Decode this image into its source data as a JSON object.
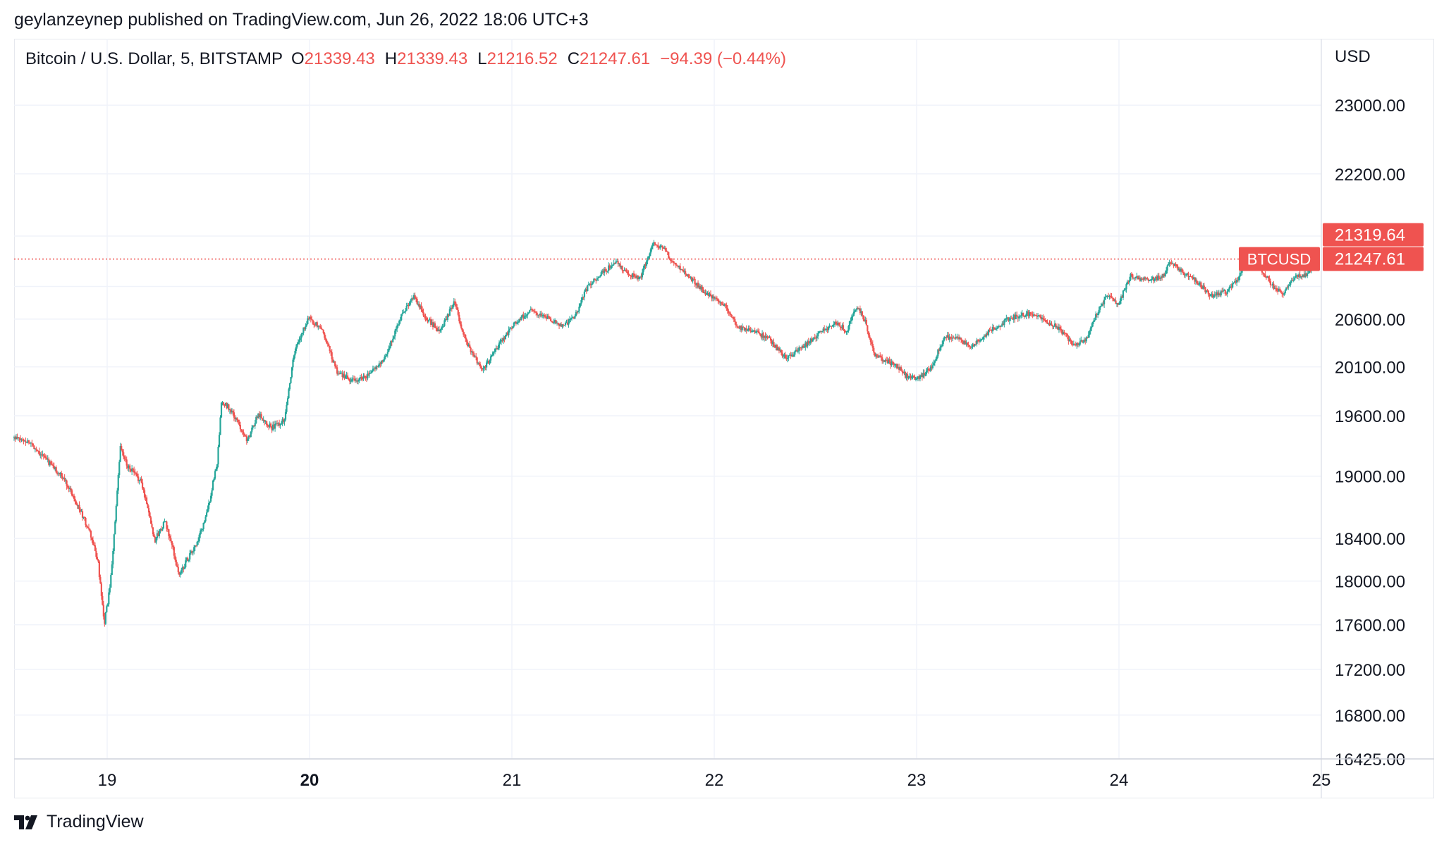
{
  "header": {
    "published_by": "geylanzeynep published on TradingView.com, Jun 26, 2022 18:06 UTC+3"
  },
  "legend": {
    "symbol": "Bitcoin / U.S. Dollar, 5, BITSTAMP",
    "open_label": "O",
    "open_value": "21339.43",
    "high_label": "H",
    "high_value": "21339.43",
    "low_label": "L",
    "low_value": "21216.52",
    "close_label": "C",
    "close_value": "21247.61",
    "change": "−94.39 (−0.44%)"
  },
  "footer": {
    "brand": "TradingView"
  },
  "colors": {
    "up": "#26a69a",
    "down": "#ef5350",
    "grid": "#f0f3fa",
    "label_bg": "#ef5350",
    "text": "#131722"
  },
  "chart_data": {
    "type": "candlestick",
    "title": "Bitcoin / U.S. Dollar, 5, BITSTAMP",
    "currency_label": "USD",
    "y_scale": "log",
    "ylim": [
      16425,
      23800
    ],
    "y_ticks": [
      {
        "value": 23000,
        "label": "23000.00"
      },
      {
        "value": 22200,
        "label": "22200.00"
      },
      {
        "value": 20600,
        "label": "20600.00"
      },
      {
        "value": 20100,
        "label": "20100.00"
      },
      {
        "value": 19600,
        "label": "19600.00"
      },
      {
        "value": 19000,
        "label": "19000.00"
      },
      {
        "value": 18400,
        "label": "18400.00"
      },
      {
        "value": 18000,
        "label": "18000.00"
      },
      {
        "value": 17600,
        "label": "17600.00"
      },
      {
        "value": 17200,
        "label": "17200.00"
      },
      {
        "value": 16800,
        "label": "16800.00"
      },
      {
        "value": 16425,
        "label": "16425.00"
      }
    ],
    "xlim": [
      18.54,
      25.0
    ],
    "x_ticks": [
      {
        "value": 19,
        "label": "19",
        "bold": false
      },
      {
        "value": 20,
        "label": "20",
        "bold": true
      },
      {
        "value": 21,
        "label": "21",
        "bold": false
      },
      {
        "value": 22,
        "label": "22",
        "bold": false
      },
      {
        "value": 23,
        "label": "23",
        "bold": false
      },
      {
        "value": 24,
        "label": "24",
        "bold": false
      },
      {
        "value": 25,
        "label": "25",
        "bold": false
      }
    ],
    "price_series": [
      [
        18.54,
        19380
      ],
      [
        18.62,
        19340
      ],
      [
        18.72,
        19130
      ],
      [
        18.8,
        18950
      ],
      [
        18.86,
        18720
      ],
      [
        18.92,
        18450
      ],
      [
        18.96,
        18180
      ],
      [
        18.99,
        17600
      ],
      [
        19.02,
        17950
      ],
      [
        19.05,
        18700
      ],
      [
        19.07,
        19280
      ],
      [
        19.1,
        19120
      ],
      [
        19.17,
        18950
      ],
      [
        19.2,
        18750
      ],
      [
        19.24,
        18380
      ],
      [
        19.29,
        18560
      ],
      [
        19.33,
        18300
      ],
      [
        19.36,
        18050
      ],
      [
        19.4,
        18200
      ],
      [
        19.45,
        18350
      ],
      [
        19.5,
        18650
      ],
      [
        19.55,
        19150
      ],
      [
        19.57,
        19720
      ],
      [
        19.6,
        19700
      ],
      [
        19.66,
        19500
      ],
      [
        19.7,
        19350
      ],
      [
        19.75,
        19620
      ],
      [
        19.82,
        19480
      ],
      [
        19.88,
        19560
      ],
      [
        19.93,
        20250
      ],
      [
        20.0,
        20620
      ],
      [
        20.07,
        20480
      ],
      [
        20.14,
        20050
      ],
      [
        20.22,
        19950
      ],
      [
        20.3,
        20020
      ],
      [
        20.38,
        20200
      ],
      [
        20.45,
        20600
      ],
      [
        20.52,
        20850
      ],
      [
        20.58,
        20620
      ],
      [
        20.65,
        20460
      ],
      [
        20.72,
        20780
      ],
      [
        20.78,
        20350
      ],
      [
        20.86,
        20050
      ],
      [
        20.94,
        20330
      ],
      [
        21.02,
        20560
      ],
      [
        21.1,
        20690
      ],
      [
        21.18,
        20610
      ],
      [
        21.26,
        20520
      ],
      [
        21.32,
        20650
      ],
      [
        21.38,
        20950
      ],
      [
        21.46,
        21110
      ],
      [
        21.52,
        21220
      ],
      [
        21.58,
        21080
      ],
      [
        21.64,
        21040
      ],
      [
        21.7,
        21420
      ],
      [
        21.75,
        21380
      ],
      [
        21.8,
        21210
      ],
      [
        21.86,
        21110
      ],
      [
        21.92,
        20970
      ],
      [
        21.98,
        20850
      ],
      [
        22.06,
        20730
      ],
      [
        22.12,
        20520
      ],
      [
        22.2,
        20480
      ],
      [
        22.28,
        20380
      ],
      [
        22.36,
        20180
      ],
      [
        22.44,
        20300
      ],
      [
        22.52,
        20440
      ],
      [
        22.6,
        20560
      ],
      [
        22.66,
        20480
      ],
      [
        22.71,
        20740
      ],
      [
        22.75,
        20580
      ],
      [
        22.8,
        20210
      ],
      [
        22.84,
        20180
      ],
      [
        22.9,
        20120
      ],
      [
        22.96,
        19990
      ],
      [
        23.02,
        19980
      ],
      [
        23.08,
        20110
      ],
      [
        23.14,
        20400
      ],
      [
        23.2,
        20420
      ],
      [
        23.27,
        20300
      ],
      [
        23.34,
        20430
      ],
      [
        23.41,
        20540
      ],
      [
        23.48,
        20620
      ],
      [
        23.56,
        20660
      ],
      [
        23.62,
        20610
      ],
      [
        23.7,
        20520
      ],
      [
        23.78,
        20340
      ],
      [
        23.84,
        20380
      ],
      [
        23.9,
        20680
      ],
      [
        23.95,
        20860
      ],
      [
        24.0,
        20740
      ],
      [
        24.06,
        21060
      ],
      [
        24.14,
        21020
      ],
      [
        24.22,
        21050
      ],
      [
        24.26,
        21220
      ],
      [
        24.33,
        21090
      ],
      [
        24.4,
        20980
      ],
      [
        24.46,
        20850
      ],
      [
        24.54,
        20900
      ],
      [
        24.6,
        21060
      ],
      [
        24.64,
        21280
      ],
      [
        24.7,
        21170
      ],
      [
        24.76,
        20960
      ],
      [
        24.82,
        20880
      ],
      [
        24.88,
        21060
      ],
      [
        24.94,
        21080
      ],
      [
        24.985,
        21247.61
      ]
    ],
    "last_price": {
      "value": 21247.61,
      "label": "21247.61",
      "symbol_label": "BTCUSD"
    },
    "marker_price": {
      "value": 21319.64,
      "label": "21319.64"
    }
  }
}
